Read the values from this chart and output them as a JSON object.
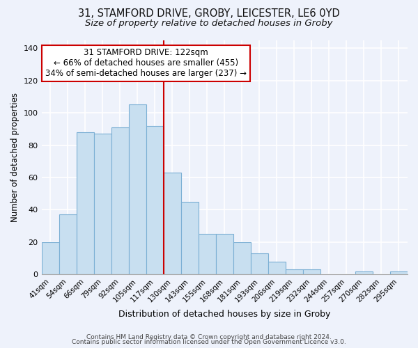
{
  "title1": "31, STAMFORD DRIVE, GROBY, LEICESTER, LE6 0YD",
  "title2": "Size of property relative to detached houses in Groby",
  "xlabel": "Distribution of detached houses by size in Groby",
  "ylabel": "Number of detached properties",
  "categories": [
    "41sqm",
    "54sqm",
    "66sqm",
    "79sqm",
    "92sqm",
    "105sqm",
    "117sqm",
    "130sqm",
    "143sqm",
    "155sqm",
    "168sqm",
    "181sqm",
    "193sqm",
    "206sqm",
    "219sqm",
    "232sqm",
    "244sqm",
    "257sqm",
    "270sqm",
    "282sqm",
    "295sqm"
  ],
  "values": [
    20,
    37,
    88,
    87,
    91,
    105,
    92,
    63,
    45,
    25,
    25,
    20,
    13,
    8,
    3,
    3,
    0,
    0,
    2,
    0,
    2
  ],
  "bar_color": "#c8dff0",
  "bar_edge_color": "#7bafd4",
  "vline_x": 6.5,
  "vline_color": "#cc0000",
  "annotation_line1": "31 STAMFORD DRIVE: 122sqm",
  "annotation_line2": "← 66% of detached houses are smaller (455)",
  "annotation_line3": "34% of semi-detached houses are larger (237) →",
  "box_color": "#ffffff",
  "box_edge_color": "#cc0000",
  "ylim": [
    0,
    145
  ],
  "yticks": [
    0,
    20,
    40,
    60,
    80,
    100,
    120,
    140
  ],
  "footer1": "Contains HM Land Registry data © Crown copyright and database right 2024.",
  "footer2": "Contains public sector information licensed under the Open Government Licence v3.0.",
  "background_color": "#eef2fb",
  "grid_color": "#ffffff",
  "title1_fontsize": 10.5,
  "title2_fontsize": 9.5,
  "annotation_fontsize": 8.5,
  "tick_fontsize": 7.5,
  "ylabel_fontsize": 8.5,
  "xlabel_fontsize": 9,
  "footer_fontsize": 6.5
}
